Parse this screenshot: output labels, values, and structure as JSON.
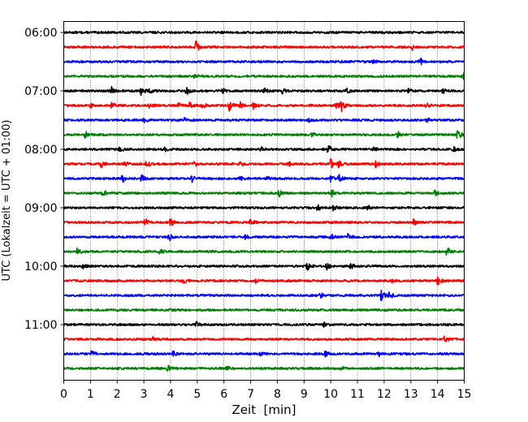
{
  "chart_data": {
    "type": "line",
    "title": "",
    "xlabel": "Zeit  [min]",
    "ylabel": "UTC (Lokalzeit = UTC + 01:00)",
    "xlim": [
      0,
      15
    ],
    "x_ticks": [
      "0",
      "1",
      "2",
      "3",
      "4",
      "5",
      "6",
      "7",
      "8",
      "9",
      "10",
      "11",
      "12",
      "13",
      "14",
      "15"
    ],
    "y_tick_labels": [
      "06:00",
      "07:00",
      "08:00",
      "09:00",
      "10:00",
      "11:00"
    ],
    "grid": "vertical dotted",
    "legend": "none",
    "trace_colors": [
      "#000000",
      "#ff0000",
      "#0000ff",
      "#008000"
    ],
    "traces": [
      {
        "start": "06:00",
        "events": [
          [
            11.9,
            0.12
          ]
        ]
      },
      {
        "start": "06:15",
        "events": [
          [
            4.95,
            1.0
          ],
          [
            13.05,
            0.45
          ]
        ]
      },
      {
        "start": "06:30",
        "events": [
          [
            13.35,
            0.55
          ],
          [
            11.6,
            0.25
          ]
        ]
      },
      {
        "start": "06:45",
        "events": [
          [
            14.95,
            0.9
          ],
          [
            4.9,
            0.25
          ]
        ]
      },
      {
        "start": "07:00",
        "events": [
          [
            1.8,
            0.6
          ],
          [
            2.9,
            0.7
          ],
          [
            3.2,
            0.5
          ],
          [
            4.6,
            0.6
          ],
          [
            5.9,
            0.5
          ],
          [
            7.5,
            0.4
          ],
          [
            8.2,
            0.4
          ],
          [
            10.6,
            0.4
          ],
          [
            12.9,
            0.4
          ],
          [
            14.2,
            0.4
          ]
        ]
      },
      {
        "start": "07:15",
        "events": [
          [
            1.0,
            0.4
          ],
          [
            1.8,
            0.5
          ],
          [
            3.2,
            0.45
          ],
          [
            4.3,
            0.4
          ],
          [
            4.7,
            0.5
          ],
          [
            5.2,
            0.45
          ],
          [
            6.2,
            1.0
          ],
          [
            6.6,
            0.5
          ],
          [
            7.1,
            0.5
          ],
          [
            10.2,
            0.5
          ],
          [
            10.4,
            0.9
          ],
          [
            13.6,
            0.4
          ]
        ]
      },
      {
        "start": "07:30",
        "events": [
          [
            3.0,
            0.5
          ],
          [
            4.5,
            0.35
          ],
          [
            9.2,
            0.35
          ],
          [
            13.6,
            0.3
          ]
        ]
      },
      {
        "start": "07:45",
        "events": [
          [
            0.8,
            0.55
          ],
          [
            9.3,
            0.35
          ],
          [
            12.5,
            0.5
          ],
          [
            14.75,
            0.65
          ]
        ]
      },
      {
        "start": "08:00",
        "events": [
          [
            2.1,
            0.35
          ],
          [
            3.8,
            0.3
          ],
          [
            7.4,
            0.35
          ],
          [
            9.9,
            0.7
          ],
          [
            11.6,
            0.35
          ],
          [
            14.6,
            0.3
          ]
        ]
      },
      {
        "start": "08:15",
        "events": [
          [
            1.4,
            0.7
          ],
          [
            2.3,
            0.4
          ],
          [
            3.1,
            0.5
          ],
          [
            4.9,
            0.4
          ],
          [
            6.6,
            0.4
          ],
          [
            8.4,
            0.4
          ],
          [
            10.0,
            0.8
          ],
          [
            10.3,
            0.5
          ],
          [
            11.7,
            0.7
          ]
        ]
      },
      {
        "start": "08:30",
        "events": [
          [
            2.2,
            0.6
          ],
          [
            2.9,
            0.75
          ],
          [
            4.8,
            0.6
          ],
          [
            6.6,
            0.4
          ],
          [
            7.6,
            0.45
          ],
          [
            10.0,
            0.5
          ],
          [
            10.3,
            0.7
          ]
        ]
      },
      {
        "start": "08:45",
        "events": [
          [
            1.45,
            0.6
          ],
          [
            8.05,
            0.6
          ],
          [
            10.05,
            0.5
          ],
          [
            13.9,
            0.45
          ]
        ]
      },
      {
        "start": "09:00",
        "events": [
          [
            9.5,
            0.55
          ],
          [
            10.1,
            0.6
          ],
          [
            11.4,
            0.3
          ]
        ]
      },
      {
        "start": "09:15",
        "events": [
          [
            3.05,
            0.6
          ],
          [
            4.0,
            0.6
          ],
          [
            7.0,
            0.45
          ],
          [
            13.1,
            0.55
          ]
        ]
      },
      {
        "start": "09:30",
        "events": [
          [
            3.95,
            0.6
          ],
          [
            6.8,
            0.35
          ],
          [
            10.0,
            0.6
          ],
          [
            10.65,
            0.45
          ]
        ]
      },
      {
        "start": "09:45",
        "events": [
          [
            0.5,
            0.5
          ],
          [
            3.6,
            0.35
          ],
          [
            14.35,
            0.7
          ]
        ]
      },
      {
        "start": "10:00",
        "events": [
          [
            0.7,
            0.4
          ],
          [
            9.1,
            0.7
          ],
          [
            9.85,
            0.5
          ],
          [
            10.75,
            0.45
          ]
        ]
      },
      {
        "start": "10:15",
        "events": [
          [
            4.5,
            0.4
          ],
          [
            7.2,
            0.35
          ],
          [
            12.3,
            0.35
          ],
          [
            14.0,
            0.7
          ]
        ]
      },
      {
        "start": "10:30",
        "events": [
          [
            9.6,
            0.45
          ],
          [
            11.9,
            1.0
          ],
          [
            12.2,
            0.6
          ]
        ]
      },
      {
        "start": "10:45",
        "events": [
          [
            4.0,
            0.25
          ]
        ]
      },
      {
        "start": "11:00",
        "events": [
          [
            4.95,
            0.45
          ],
          [
            9.75,
            0.35
          ]
        ]
      },
      {
        "start": "11:15",
        "events": [
          [
            3.3,
            0.35
          ],
          [
            14.25,
            0.65
          ]
        ]
      },
      {
        "start": "11:30",
        "events": [
          [
            1.05,
            0.5
          ],
          [
            4.1,
            0.4
          ],
          [
            7.35,
            0.35
          ],
          [
            9.8,
            0.55
          ],
          [
            11.8,
            0.35
          ]
        ]
      },
      {
        "start": "11:45",
        "events": [
          [
            3.9,
            0.55
          ],
          [
            6.1,
            0.35
          ],
          [
            10.4,
            0.3
          ]
        ]
      }
    ]
  }
}
